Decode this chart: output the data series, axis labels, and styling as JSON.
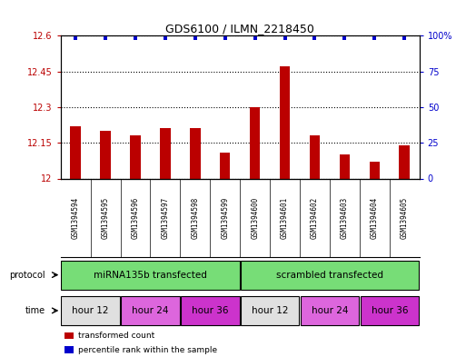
{
  "title": "GDS6100 / ILMN_2218450",
  "samples": [
    "GSM1394594",
    "GSM1394595",
    "GSM1394596",
    "GSM1394597",
    "GSM1394598",
    "GSM1394599",
    "GSM1394600",
    "GSM1394601",
    "GSM1394602",
    "GSM1394603",
    "GSM1394604",
    "GSM1394605"
  ],
  "bar_values": [
    12.22,
    12.2,
    12.18,
    12.21,
    12.21,
    12.11,
    12.3,
    12.47,
    12.18,
    12.1,
    12.07,
    12.14
  ],
  "bar_color": "#BB0000",
  "percentile_color": "#0000CC",
  "ylim_left": [
    12.0,
    12.6
  ],
  "ylim_right": [
    0,
    100
  ],
  "yticks_left": [
    12.0,
    12.15,
    12.3,
    12.45,
    12.6
  ],
  "yticks_right": [
    0,
    25,
    50,
    75,
    100
  ],
  "ytick_labels_left": [
    "12",
    "12.15",
    "12.3",
    "12.45",
    "12.6"
  ],
  "ytick_labels_right": [
    "0",
    "25",
    "50",
    "75",
    "100%"
  ],
  "protocol_color": "#77DD77",
  "sample_bg_color": "#D0D0D0",
  "time_groups": [
    {
      "label": "hour 12",
      "start": 0,
      "end": 2,
      "color": "#E0E0E0"
    },
    {
      "label": "hour 24",
      "start": 2,
      "end": 4,
      "color": "#DD66DD"
    },
    {
      "label": "hour 36",
      "start": 4,
      "end": 6,
      "color": "#CC33CC"
    },
    {
      "label": "hour 12",
      "start": 6,
      "end": 8,
      "color": "#E0E0E0"
    },
    {
      "label": "hour 24",
      "start": 8,
      "end": 10,
      "color": "#DD66DD"
    },
    {
      "label": "hour 36",
      "start": 10,
      "end": 12,
      "color": "#CC33CC"
    }
  ],
  "legend_items": [
    {
      "label": "transformed count",
      "color": "#BB0000"
    },
    {
      "label": "percentile rank within the sample",
      "color": "#0000CC"
    }
  ],
  "background_color": "#FFFFFF"
}
